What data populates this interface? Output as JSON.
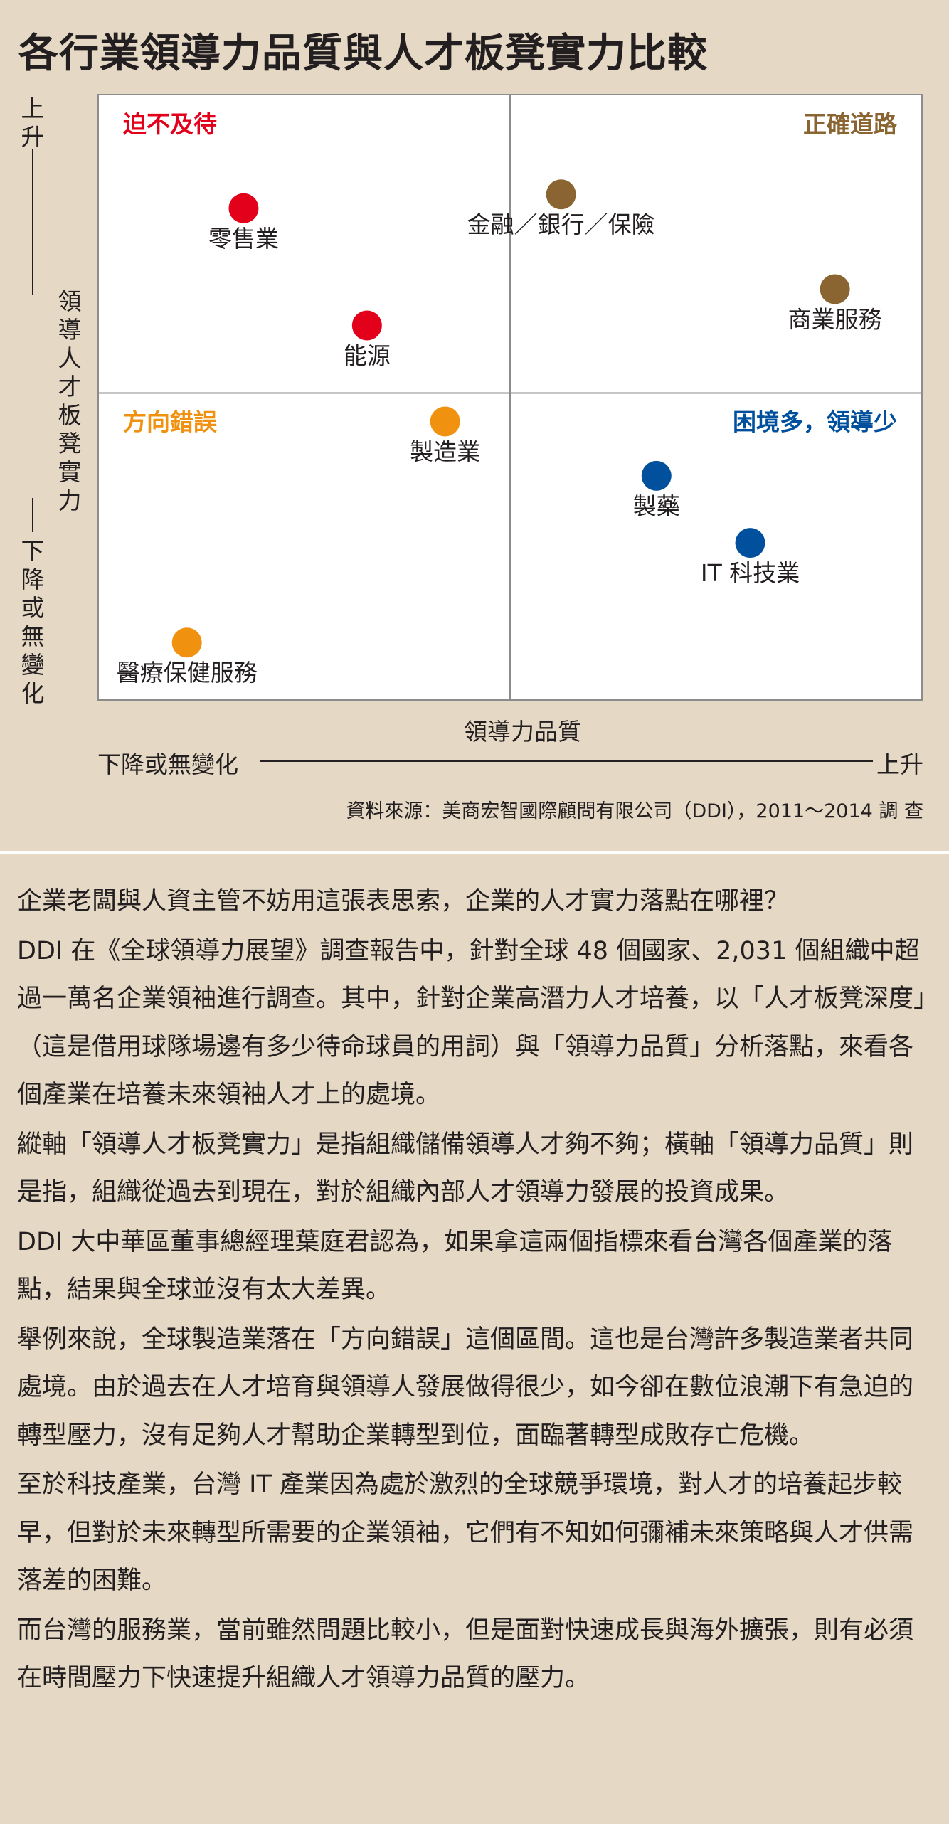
{
  "title": "各行業領導力品質與人才板凳實力比較",
  "y_axis": {
    "high": "上升",
    "title": "領導人才板凳實力",
    "low": "下降或無變化"
  },
  "x_axis": {
    "title": "領導力品質",
    "low": "下降或無變化",
    "high": "上升"
  },
  "source": "資料來源：美商宏智國際顧問有限公司（DDI），2011～2014 調 查",
  "colors": {
    "red": "#e3001b",
    "brown": "#8a6532",
    "orange": "#f0920f",
    "blue": "#00509d"
  },
  "chart_data": {
    "type": "scatter",
    "title": "各行業領導力品質與人才板凳實力比較",
    "xlabel": "領導力品質",
    "ylabel": "領導人才板凳實力",
    "xlim": [
      0,
      100
    ],
    "ylim": [
      0,
      100
    ],
    "grid": false,
    "quadrants": [
      {
        "name": "迫不及待",
        "position": "top-left",
        "color": "#e3001b"
      },
      {
        "name": "正確道路",
        "position": "top-right",
        "color": "#8a6532"
      },
      {
        "name": "方向錯誤",
        "position": "bottom-left",
        "color": "#f0920f"
      },
      {
        "name": "困境多，領導少",
        "position": "bottom-right",
        "color": "#00509d"
      }
    ],
    "points": [
      {
        "label": "零售業",
        "x": 17.6,
        "y": 81.3,
        "quadrant": "迫不及待",
        "color": "#e3001b"
      },
      {
        "label": "能源",
        "x": 32.6,
        "y": 61.9,
        "quadrant": "迫不及待",
        "color": "#e3001b"
      },
      {
        "label": "金融／銀行／保險",
        "x": 56.2,
        "y": 83.6,
        "quadrant": "正確道路",
        "color": "#8a6532"
      },
      {
        "label": "商業服務",
        "x": 89.5,
        "y": 67.9,
        "quadrant": "正確道路",
        "color": "#8a6532"
      },
      {
        "label": "製造業",
        "x": 42.1,
        "y": 46.0,
        "quadrant": "方向錯誤",
        "color": "#f0920f"
      },
      {
        "label": "醫療保健服務",
        "x": 10.7,
        "y": 9.4,
        "quadrant": "方向錯誤",
        "color": "#f0920f"
      },
      {
        "label": "製藥",
        "x": 67.8,
        "y": 37.0,
        "quadrant": "困境多，領導少",
        "color": "#00509d"
      },
      {
        "label": "IT 科技業",
        "x": 79.2,
        "y": 25.9,
        "quadrant": "困境多，領導少",
        "color": "#00509d"
      }
    ]
  },
  "article": [
    "企業老闆與人資主管不妨用這張表思索，企業的人才實力落點在哪裡？",
    "DDI 在《全球領導力展望》調查報告中，針對全球 48 個國家、2,031 個組織中超過一萬名企業領袖進行調查。其中，針對企業高潛力人才培養，以「人才板凳深度」（這是借用球隊場邊有多少待命球員的用詞）與「領導力品質」分析落點，來看各個產業在培養未來領袖人才上的處境。",
    "縱軸「領導人才板凳實力」是指組織儲備領導人才夠不夠；橫軸「領導力品質」則是指，組織從過去到現在，對於組織內部人才領導力發展的投資成果。",
    "DDI 大中華區董事總經理葉庭君認為，如果拿這兩個指標來看台灣各個產業的落點，結果與全球並沒有太大差異。",
    "舉例來說，全球製造業落在「方向錯誤」這個區間。這也是台灣許多製造業者共同處境。由於過去在人才培育與領導人發展做得很少，如今卻在數位浪潮下有急迫的轉型壓力，沒有足夠人才幫助企業轉型到位，面臨著轉型成敗存亡危機。",
    "至於科技產業，台灣 IT 產業因為處於激烈的全球競爭環境，對人才的培養起步較早，但對於未來轉型所需要的企業領袖，它們有不知如何彌補未來策略與人才供需落差的困難。",
    "而台灣的服務業，當前雖然問題比較小，但是面對快速成長與海外擴張，則有必須在時間壓力下快速提升組織人才領導力品質的壓力。"
  ]
}
